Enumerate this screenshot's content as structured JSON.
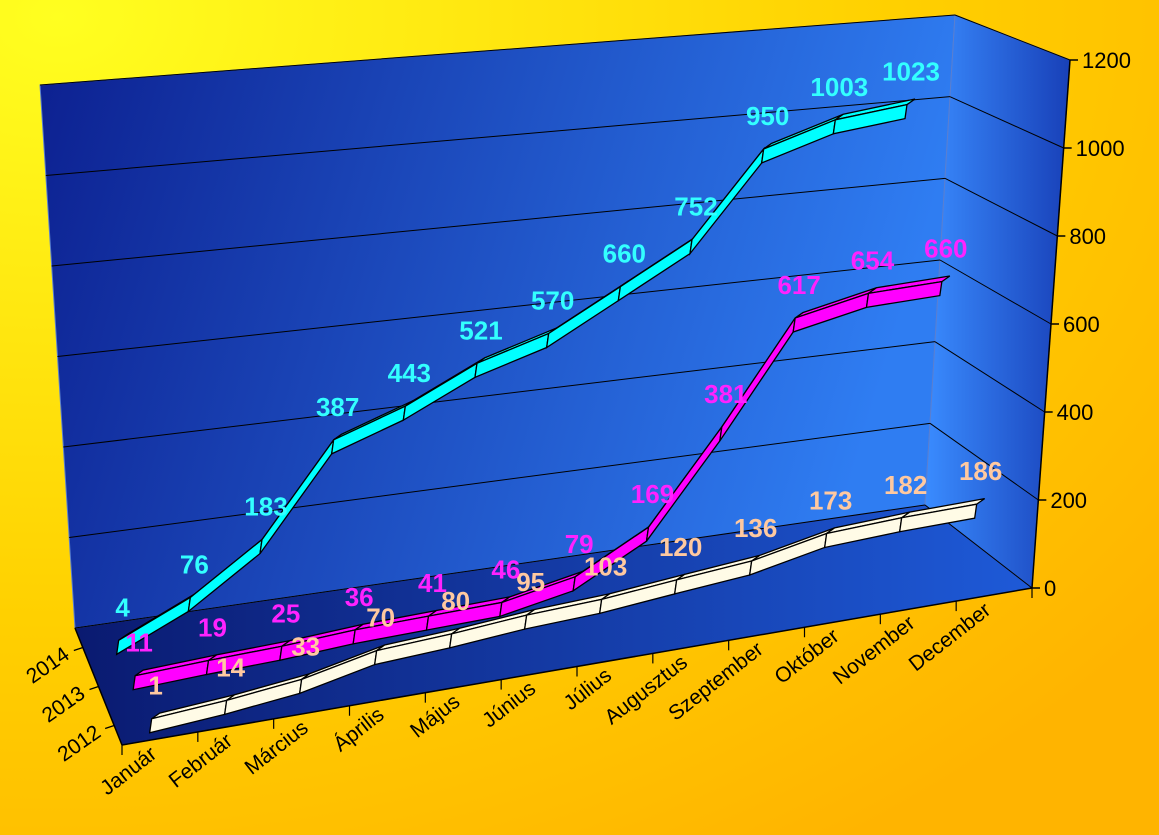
{
  "chart_data": {
    "type": "line",
    "categories": [
      "Január",
      "Február",
      "Március",
      "Április",
      "Május",
      "Június",
      "Július",
      "Augusztus",
      "Szeptember",
      "Október",
      "November",
      "December"
    ],
    "series": [
      {
        "name": "2012",
        "color": "#fffbe6",
        "label_color": "#ffc9a0",
        "values": [
          1,
          14,
          33,
          70,
          80,
          95,
          103,
          120,
          136,
          173,
          182,
          186
        ]
      },
      {
        "name": "2013",
        "color": "#ff00ff",
        "label_color": "#ff22ff",
        "values": [
          11,
          19,
          25,
          36,
          41,
          46,
          79,
          169,
          381,
          617,
          654,
          660
        ]
      },
      {
        "name": "2014",
        "color": "#00ffff",
        "label_color": "#33ffff",
        "values": [
          4,
          76,
          183,
          387,
          443,
          521,
          570,
          660,
          752,
          950,
          1003,
          1023
        ]
      }
    ],
    "ylim": [
      0,
      1200
    ],
    "yticks": [
      0,
      200,
      400,
      600,
      800,
      1000,
      1200
    ],
    "grid": true
  },
  "colors": {
    "background": "#ffd700",
    "wall_dark": "#0a1f8f",
    "wall_light": "#2f7bf0"
  }
}
